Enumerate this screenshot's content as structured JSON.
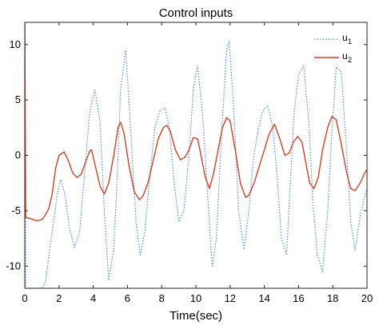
{
  "chart_data": {
    "type": "line",
    "title": "Control inputs",
    "xlabel": "Time(sec)",
    "ylabel": "",
    "xlim": [
      0,
      20
    ],
    "ylim": [
      -12,
      12
    ],
    "xticks": [
      0,
      2,
      4,
      6,
      8,
      10,
      12,
      14,
      16,
      18,
      20
    ],
    "yticks": [
      -10,
      -5,
      0,
      5,
      10
    ],
    "grid": false,
    "legend_position": "top-right",
    "legend": [
      {
        "base": "u",
        "sub": "1"
      },
      {
        "base": "u",
        "sub": "2"
      }
    ],
    "series": [
      {
        "name": "u1",
        "color": "#4a90d9",
        "style": "dotted",
        "x": [
          0.0,
          0.05,
          0.5,
          1.0,
          1.2,
          1.5,
          1.9,
          2.1,
          2.35,
          2.6,
          2.9,
          3.2,
          3.5,
          3.8,
          4.1,
          4.4,
          4.65,
          4.9,
          5.2,
          5.4,
          5.6,
          5.9,
          6.2,
          6.5,
          6.75,
          7.0,
          7.3,
          7.6,
          7.9,
          8.2,
          8.45,
          8.7,
          9.0,
          9.3,
          9.6,
          9.85,
          10.1,
          10.4,
          10.7,
          10.95,
          11.2,
          11.5,
          11.8,
          11.95,
          12.2,
          12.5,
          12.8,
          13.1,
          13.35,
          13.6,
          13.9,
          14.2,
          14.5,
          14.75,
          15.0,
          15.3,
          15.5,
          15.75,
          16.0,
          16.3,
          16.6,
          16.85,
          17.1,
          17.4,
          17.7,
          17.95,
          18.2,
          18.5,
          18.8,
          19.05,
          19.3,
          19.6,
          19.9,
          20.0
        ],
        "y": [
          12.0,
          -12.0,
          -12.0,
          -12.0,
          -11.5,
          -8.0,
          -3.5,
          -2.2,
          -3.5,
          -6.5,
          -8.3,
          -7.0,
          -1.5,
          4.0,
          5.9,
          3.0,
          -5.0,
          -11.3,
          -8.5,
          -2.0,
          6.0,
          9.5,
          2.0,
          -6.0,
          -9.0,
          -7.0,
          -2.0,
          2.5,
          4.0,
          4.3,
          2.5,
          -2.0,
          -6.0,
          -5.0,
          0.0,
          6.0,
          8.1,
          3.5,
          -4.0,
          -10.0,
          -7.5,
          2.0,
          9.5,
          10.3,
          4.5,
          -5.0,
          -8.5,
          -5.0,
          -0.5,
          2.0,
          4.0,
          4.5,
          2.5,
          -2.0,
          -7.5,
          -9.0,
          -3.0,
          4.0,
          7.3,
          8.1,
          3.0,
          -4.5,
          -9.0,
          -10.5,
          -5.0,
          2.0,
          8.0,
          7.5,
          0.5,
          -6.0,
          -8.6,
          -5.5,
          -3.5,
          -3.0
        ]
      },
      {
        "name": "u2",
        "color": "#d9411e",
        "style": "solid",
        "x": [
          0.0,
          0.05,
          0.3,
          0.7,
          1.0,
          1.2,
          1.4,
          1.6,
          1.8,
          2.0,
          2.3,
          2.55,
          2.8,
          3.05,
          3.3,
          3.55,
          3.8,
          3.9,
          4.1,
          4.4,
          4.65,
          4.9,
          5.2,
          5.45,
          5.6,
          5.8,
          6.1,
          6.4,
          6.7,
          6.9,
          7.2,
          7.5,
          7.8,
          8.1,
          8.3,
          8.5,
          8.8,
          9.1,
          9.35,
          9.6,
          9.85,
          10.1,
          10.3,
          10.55,
          10.8,
          11.05,
          11.3,
          11.55,
          11.8,
          12.0,
          12.3,
          12.6,
          12.9,
          13.1,
          13.4,
          13.7,
          14.0,
          14.3,
          14.6,
          14.9,
          15.2,
          15.45,
          15.7,
          15.95,
          16.2,
          16.4,
          16.65,
          16.9,
          17.15,
          17.4,
          17.7,
          17.95,
          18.2,
          18.5,
          18.8,
          19.05,
          19.3,
          19.6,
          19.9,
          20.0
        ],
        "y": [
          12.0,
          -5.6,
          -5.7,
          -5.9,
          -5.8,
          -5.4,
          -4.8,
          -3.5,
          -1.2,
          0.0,
          0.3,
          -0.5,
          -1.6,
          -2.0,
          -1.7,
          -0.6,
          0.4,
          0.5,
          -0.8,
          -2.8,
          -3.5,
          -2.5,
          0.0,
          2.5,
          3.0,
          2.0,
          -1.0,
          -3.3,
          -4.0,
          -3.7,
          -2.5,
          -0.5,
          1.5,
          2.5,
          2.7,
          2.2,
          0.5,
          -0.4,
          -0.2,
          0.5,
          1.6,
          1.5,
          0.0,
          -2.0,
          -3.0,
          -1.5,
          0.5,
          2.5,
          3.4,
          3.1,
          0.5,
          -2.5,
          -3.8,
          -3.6,
          -2.5,
          -1.0,
          0.5,
          2.0,
          2.8,
          1.5,
          0.0,
          0.2,
          1.2,
          1.7,
          1.2,
          -0.5,
          -2.5,
          -3.0,
          -2.0,
          0.5,
          2.5,
          3.5,
          3.2,
          1.0,
          -1.5,
          -3.0,
          -3.2,
          -2.5,
          -1.5,
          -1.3
        ]
      }
    ]
  }
}
